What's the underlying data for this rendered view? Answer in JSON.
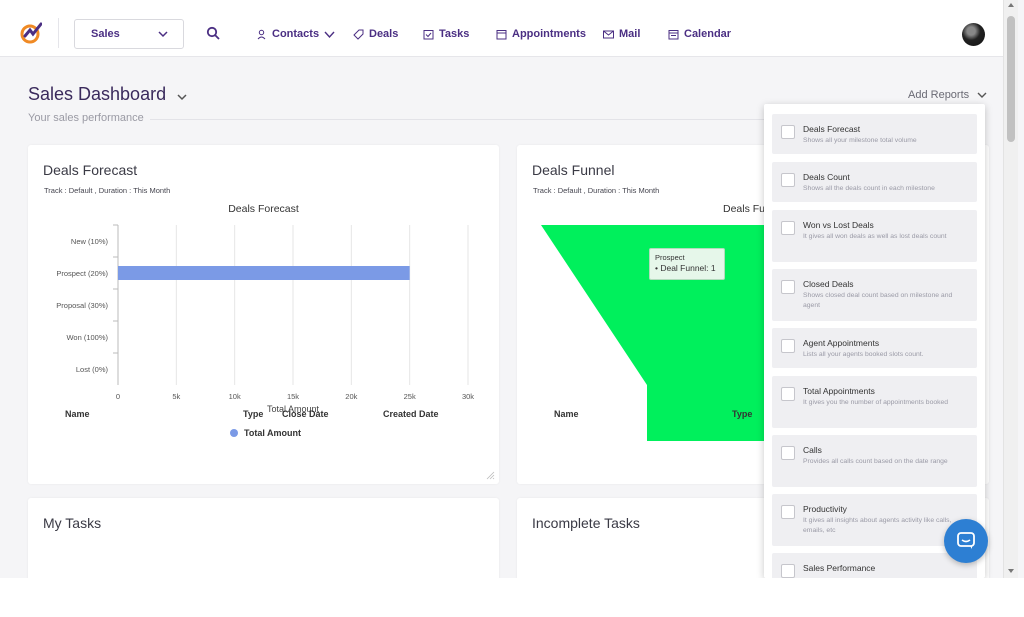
{
  "nav": {
    "module_selected": "Sales",
    "items": [
      {
        "label": "Contacts",
        "icon": "contact-icon"
      },
      {
        "label": "Deals",
        "icon": "tag-icon"
      },
      {
        "label": "Tasks",
        "icon": "task-icon"
      },
      {
        "label": "Appointments",
        "icon": "appointments-icon"
      },
      {
        "label": "Mail",
        "icon": "mail-icon"
      },
      {
        "label": "Calendar",
        "icon": "calendar-icon"
      }
    ]
  },
  "page": {
    "title": "Sales Dashboard",
    "subtitle": "Your sales performance",
    "add_reports": "Add Reports"
  },
  "forecast": {
    "title": "Deals Forecast",
    "meta": "Track : Default ,  Duration : This Month",
    "legend": "Total Amount"
  },
  "funnel": {
    "title": "Deals Funnel",
    "meta": "Track : Default ,  Duration : This Month",
    "chart_title_partial": "Deals Fu",
    "tooltip_stage": "Prospect",
    "tooltip_value": "• Deal Funnel: 1"
  },
  "my_tasks": {
    "title": "My Tasks",
    "columns": [
      "Name",
      "Type",
      "Close Date",
      "Created Date"
    ]
  },
  "incomplete_tasks": {
    "title": "Incomplete Tasks",
    "columns": [
      "Name",
      "Type"
    ]
  },
  "reports": [
    {
      "name": "Deals Forecast",
      "desc": "Shows all your milestone total volume"
    },
    {
      "name": "Deals Count",
      "desc": "Shows all the deals count in each milestone"
    },
    {
      "name": "Won vs Lost Deals",
      "desc": "It gives all won deals as well as lost deals count"
    },
    {
      "name": "Closed Deals",
      "desc": "Shows closed deal count based on milestone and agent"
    },
    {
      "name": "Agent Appointments",
      "desc": "Lists all your agents booked slots count."
    },
    {
      "name": "Total Appointments",
      "desc": "It gives you the number of appointments booked"
    },
    {
      "name": "Calls",
      "desc": "Provides all calls count based on the date range"
    },
    {
      "name": "Productivity",
      "desc": "It gives all insights about agents activity like calls, emails, etc"
    },
    {
      "name": "Sales Performance",
      "desc": ""
    }
  ],
  "colors": {
    "brand": "#4b2f83",
    "forecast_bar": "#7b9ae6",
    "funnel": "#00f05c",
    "chat": "#2d7fd3"
  },
  "chart_data": [
    {
      "type": "bar",
      "orientation": "horizontal",
      "title": "Deals Forecast",
      "categories": [
        "New (10%)",
        "Prospect (20%)",
        "Proposal (30%)",
        "Won (100%)",
        "Lost (0%)"
      ],
      "series": [
        {
          "name": "Total Amount",
          "values": [
            0,
            25000,
            0,
            0,
            0
          ]
        }
      ],
      "xlabel": "Total Amount",
      "xlim": [
        0,
        30000
      ],
      "xticks": [
        "0",
        "5k",
        "10k",
        "15k",
        "20k",
        "25k",
        "30k"
      ],
      "grid": true,
      "legend": "bottom"
    },
    {
      "type": "funnel",
      "title": "Deals Funnel",
      "categories": [
        "Prospect"
      ],
      "series": [
        {
          "name": "Deal Funnel",
          "values": [
            1
          ]
        }
      ]
    }
  ]
}
